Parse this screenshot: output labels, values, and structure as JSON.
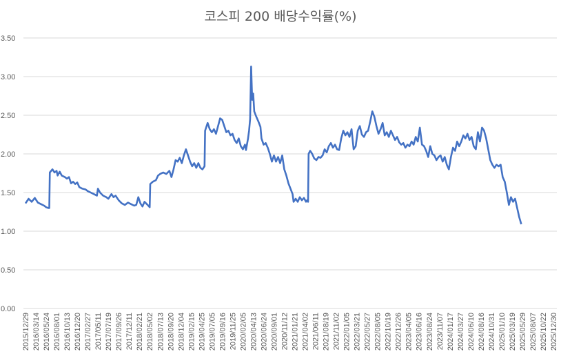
{
  "chart_data": {
    "type": "line",
    "title": "코스피 200 배당수익률(%)",
    "xlabel": "",
    "ylabel": "",
    "ylim": [
      0,
      3.5
    ],
    "yticks": [
      "0.00",
      "0.50",
      "1.00",
      "1.50",
      "2.00",
      "2.50",
      "3.00",
      "3.50"
    ],
    "grid": true,
    "legend": "none",
    "line_color": "#4472C4",
    "categories": [
      "2015/12/29",
      "2016/03/14",
      "2016/05/24",
      "2016/08/01",
      "2016/10/13",
      "2016/12/20",
      "2017/02/27",
      "2017/05/11",
      "2017/07/19",
      "2017/09/26",
      "2017/12/11",
      "2018/02/21",
      "2018/05/02",
      "2018/07/13",
      "2018/09/20",
      "2018/12/04",
      "2019/02/15",
      "2019/04/25",
      "2019/07/05",
      "2019/09/16",
      "2019/11/25",
      "2020/02/05",
      "2020/04/13",
      "2020/06/24",
      "2020/09/01",
      "2020/11/12",
      "2021/01/21",
      "2021/04/02",
      "2021/06/11",
      "2021/08/19",
      "2021/11/02",
      "2022/01/05",
      "2022/03/21",
      "2022/05/27",
      "2022/08/05",
      "2022/10/19",
      "2022/12/26",
      "2023/04/05",
      "2023/06/16",
      "2023/08/24",
      "2023/11/07",
      "2024/01/17",
      "2024/03/27",
      "2024/06/10",
      "2024/08/16",
      "2024/10/31",
      "2025/01/10",
      "2025/03/19",
      "2025/05/29",
      "2025/08/07",
      "2025/10/22",
      "2025/12/30"
    ],
    "series": [
      {
        "name": "코스피 200 배당수익률",
        "points_idx": [
          [
            0,
            1.36
          ],
          [
            0.3,
            1.42
          ],
          [
            0.6,
            1.38
          ],
          [
            0.9,
            1.43
          ],
          [
            1.2,
            1.37
          ],
          [
            1.5,
            1.35
          ],
          [
            1.8,
            1.33
          ],
          [
            2.0,
            1.31
          ],
          [
            2.2,
            1.3
          ],
          [
            2.3,
            1.3
          ],
          [
            2.35,
            1.76
          ],
          [
            2.6,
            1.8
          ],
          [
            2.8,
            1.76
          ],
          [
            3.0,
            1.78
          ],
          [
            3.1,
            1.72
          ],
          [
            3.3,
            1.77
          ],
          [
            3.5,
            1.72
          ],
          [
            3.8,
            1.7
          ],
          [
            4.0,
            1.68
          ],
          [
            4.2,
            1.7
          ],
          [
            4.4,
            1.62
          ],
          [
            4.6,
            1.64
          ],
          [
            4.8,
            1.61
          ],
          [
            5.0,
            1.63
          ],
          [
            5.2,
            1.57
          ],
          [
            5.5,
            1.55
          ],
          [
            5.8,
            1.54
          ],
          [
            6.0,
            1.52
          ],
          [
            6.3,
            1.5
          ],
          [
            6.6,
            1.48
          ],
          [
            6.9,
            1.46
          ],
          [
            7.0,
            1.55
          ],
          [
            7.2,
            1.5
          ],
          [
            7.5,
            1.46
          ],
          [
            7.8,
            1.44
          ],
          [
            8.0,
            1.42
          ],
          [
            8.3,
            1.48
          ],
          [
            8.5,
            1.44
          ],
          [
            8.7,
            1.46
          ],
          [
            9.0,
            1.4
          ],
          [
            9.3,
            1.36
          ],
          [
            9.6,
            1.34
          ],
          [
            9.9,
            1.37
          ],
          [
            10.2,
            1.35
          ],
          [
            10.5,
            1.33
          ],
          [
            10.7,
            1.34
          ],
          [
            10.9,
            1.44
          ],
          [
            11.1,
            1.36
          ],
          [
            11.3,
            1.32
          ],
          [
            11.5,
            1.38
          ],
          [
            11.8,
            1.34
          ],
          [
            12.0,
            1.31
          ],
          [
            12.05,
            1.61
          ],
          [
            12.3,
            1.64
          ],
          [
            12.6,
            1.66
          ],
          [
            12.8,
            1.72
          ],
          [
            13.0,
            1.74
          ],
          [
            13.3,
            1.76
          ],
          [
            13.6,
            1.74
          ],
          [
            13.9,
            1.78
          ],
          [
            14.1,
            1.7
          ],
          [
            14.3,
            1.8
          ],
          [
            14.5,
            1.92
          ],
          [
            14.7,
            1.9
          ],
          [
            14.9,
            1.95
          ],
          [
            15.1,
            1.88
          ],
          [
            15.3,
            1.98
          ],
          [
            15.5,
            2.06
          ],
          [
            15.7,
            1.98
          ],
          [
            15.9,
            1.9
          ],
          [
            16.1,
            1.84
          ],
          [
            16.3,
            1.88
          ],
          [
            16.5,
            1.82
          ],
          [
            16.7,
            1.88
          ],
          [
            16.9,
            1.82
          ],
          [
            17.1,
            1.8
          ],
          [
            17.3,
            1.84
          ],
          [
            17.35,
            2.3
          ],
          [
            17.6,
            2.4
          ],
          [
            17.8,
            2.32
          ],
          [
            18.0,
            2.28
          ],
          [
            18.2,
            2.32
          ],
          [
            18.4,
            2.26
          ],
          [
            18.6,
            2.36
          ],
          [
            18.8,
            2.46
          ],
          [
            19.0,
            2.44
          ],
          [
            19.2,
            2.36
          ],
          [
            19.4,
            2.28
          ],
          [
            19.6,
            2.3
          ],
          [
            19.8,
            2.24
          ],
          [
            20.0,
            2.26
          ],
          [
            20.2,
            2.18
          ],
          [
            20.4,
            2.14
          ],
          [
            20.6,
            2.2
          ],
          [
            20.8,
            2.1
          ],
          [
            21.0,
            2.06
          ],
          [
            21.2,
            2.12
          ],
          [
            21.3,
            2.05
          ],
          [
            21.5,
            2.2
          ],
          [
            21.6,
            2.3
          ],
          [
            21.7,
            2.45
          ],
          [
            21.8,
            3.13
          ],
          [
            21.9,
            2.7
          ],
          [
            22.0,
            2.78
          ],
          [
            22.1,
            2.55
          ],
          [
            22.3,
            2.48
          ],
          [
            22.5,
            2.42
          ],
          [
            22.7,
            2.35
          ],
          [
            22.8,
            2.2
          ],
          [
            23.0,
            2.12
          ],
          [
            23.2,
            2.14
          ],
          [
            23.4,
            2.08
          ],
          [
            23.6,
            2.0
          ],
          [
            23.8,
            1.9
          ],
          [
            24.0,
            1.98
          ],
          [
            24.2,
            1.9
          ],
          [
            24.4,
            1.96
          ],
          [
            24.6,
            1.88
          ],
          [
            24.8,
            1.98
          ],
          [
            25.0,
            1.8
          ],
          [
            25.2,
            1.72
          ],
          [
            25.4,
            1.62
          ],
          [
            25.6,
            1.55
          ],
          [
            25.8,
            1.48
          ],
          [
            25.9,
            1.38
          ],
          [
            26.1,
            1.42
          ],
          [
            26.3,
            1.38
          ],
          [
            26.5,
            1.44
          ],
          [
            26.7,
            1.4
          ],
          [
            26.9,
            1.43
          ],
          [
            27.1,
            1.38
          ],
          [
            27.2,
            1.4
          ],
          [
            27.3,
            1.38
          ],
          [
            27.35,
            2.0
          ],
          [
            27.5,
            2.04
          ],
          [
            27.7,
            2.0
          ],
          [
            27.9,
            1.94
          ],
          [
            28.1,
            1.92
          ],
          [
            28.3,
            1.96
          ],
          [
            28.5,
            1.95
          ],
          [
            28.7,
            1.98
          ],
          [
            28.9,
            2.06
          ],
          [
            29.1,
            2.02
          ],
          [
            29.3,
            2.1
          ],
          [
            29.5,
            2.14
          ],
          [
            29.7,
            2.08
          ],
          [
            29.9,
            2.12
          ],
          [
            30.1,
            2.06
          ],
          [
            30.3,
            2.05
          ],
          [
            30.5,
            2.2
          ],
          [
            30.7,
            2.3
          ],
          [
            30.9,
            2.24
          ],
          [
            31.1,
            2.28
          ],
          [
            31.3,
            2.22
          ],
          [
            31.5,
            2.32
          ],
          [
            31.7,
            2.06
          ],
          [
            31.9,
            2.1
          ],
          [
            32.1,
            2.3
          ],
          [
            32.3,
            2.36
          ],
          [
            32.5,
            2.25
          ],
          [
            32.7,
            2.22
          ],
          [
            32.9,
            2.28
          ],
          [
            33.1,
            2.3
          ],
          [
            33.3,
            2.42
          ],
          [
            33.5,
            2.55
          ],
          [
            33.7,
            2.48
          ],
          [
            33.9,
            2.36
          ],
          [
            34.1,
            2.26
          ],
          [
            34.3,
            2.32
          ],
          [
            34.5,
            2.4
          ],
          [
            34.7,
            2.24
          ],
          [
            34.9,
            2.28
          ],
          [
            35.1,
            2.22
          ],
          [
            35.3,
            2.3
          ],
          [
            35.5,
            2.24
          ],
          [
            35.7,
            2.18
          ],
          [
            35.9,
            2.22
          ],
          [
            36.1,
            2.15
          ],
          [
            36.3,
            2.12
          ],
          [
            36.5,
            2.14
          ],
          [
            36.7,
            2.08
          ],
          [
            36.9,
            2.12
          ],
          [
            37.1,
            2.1
          ],
          [
            37.3,
            2.16
          ],
          [
            37.5,
            2.12
          ],
          [
            37.7,
            2.22
          ],
          [
            37.9,
            2.16
          ],
          [
            38.1,
            2.34
          ],
          [
            38.3,
            2.12
          ],
          [
            38.5,
            2.1
          ],
          [
            38.7,
            2.04
          ],
          [
            38.9,
            1.96
          ],
          [
            39.1,
            2.1
          ],
          [
            39.3,
            2.0
          ],
          [
            39.5,
            1.98
          ],
          [
            39.7,
            1.92
          ],
          [
            39.9,
            1.96
          ],
          [
            40.1,
            1.98
          ],
          [
            40.3,
            1.9
          ],
          [
            40.5,
            1.96
          ],
          [
            40.7,
            1.86
          ],
          [
            40.9,
            1.8
          ],
          [
            41.1,
            1.96
          ],
          [
            41.3,
            2.08
          ],
          [
            41.5,
            2.04
          ],
          [
            41.7,
            2.16
          ],
          [
            41.9,
            2.1
          ],
          [
            42.1,
            2.16
          ],
          [
            42.3,
            2.24
          ],
          [
            42.5,
            2.2
          ],
          [
            42.7,
            2.26
          ],
          [
            42.9,
            2.18
          ],
          [
            43.1,
            2.22
          ],
          [
            43.3,
            2.1
          ],
          [
            43.5,
            2.06
          ],
          [
            43.7,
            2.28
          ],
          [
            43.9,
            2.16
          ],
          [
            44.1,
            2.34
          ],
          [
            44.3,
            2.3
          ],
          [
            44.5,
            2.2
          ],
          [
            44.7,
            2.06
          ],
          [
            44.9,
            1.92
          ],
          [
            45.1,
            1.86
          ],
          [
            45.3,
            1.82
          ],
          [
            45.5,
            1.86
          ],
          [
            45.7,
            1.84
          ],
          [
            45.9,
            1.86
          ],
          [
            46.1,
            1.7
          ],
          [
            46.3,
            1.64
          ],
          [
            46.5,
            1.5
          ],
          [
            46.7,
            1.34
          ],
          [
            46.9,
            1.44
          ],
          [
            47.1,
            1.38
          ],
          [
            47.3,
            1.42
          ],
          [
            47.5,
            1.3
          ],
          [
            47.7,
            1.18
          ],
          [
            47.9,
            1.09
          ]
        ]
      }
    ]
  }
}
